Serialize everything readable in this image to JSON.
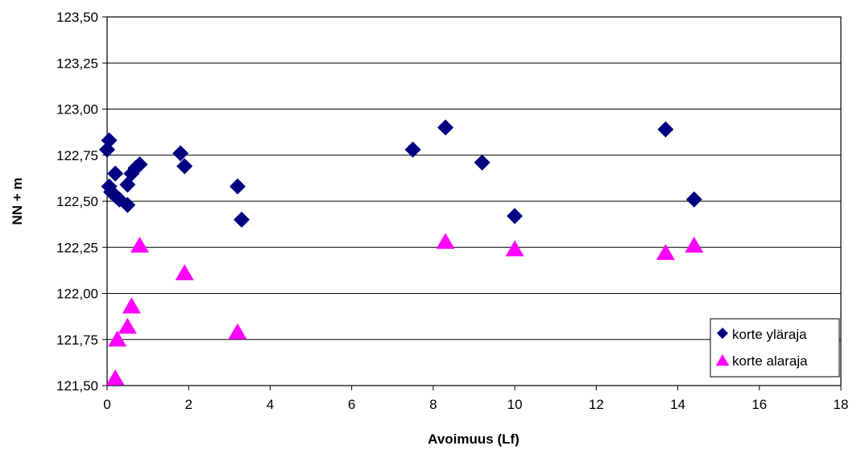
{
  "chart_data": {
    "type": "scatter",
    "title": "",
    "xlabel": "Avoimuus (Lf)",
    "ylabel": "NN + m",
    "xlim": [
      0,
      18
    ],
    "ylim": [
      121.5,
      123.5
    ],
    "x_ticks": [
      "0",
      "2",
      "4",
      "6",
      "8",
      "10",
      "12",
      "14",
      "16",
      "18"
    ],
    "y_ticks": [
      "121,50",
      "121,75",
      "122,00",
      "122,25",
      "122,50",
      "122,75",
      "123,00",
      "123,25",
      "123,50"
    ],
    "grid": "horizontal",
    "legend_position": "bottom-right",
    "series": [
      {
        "name": "korte yläraja",
        "marker": "diamond",
        "color": "#000080",
        "points": [
          [
            0.0,
            122.78
          ],
          [
            0.05,
            122.83
          ],
          [
            0.05,
            122.58
          ],
          [
            0.1,
            122.55
          ],
          [
            0.2,
            122.65
          ],
          [
            0.2,
            122.53
          ],
          [
            0.3,
            122.51
          ],
          [
            0.5,
            122.48
          ],
          [
            0.5,
            122.59
          ],
          [
            0.6,
            122.65
          ],
          [
            0.7,
            122.68
          ],
          [
            0.8,
            122.7
          ],
          [
            1.8,
            122.76
          ],
          [
            1.9,
            122.69
          ],
          [
            3.2,
            122.58
          ],
          [
            3.3,
            122.4
          ],
          [
            7.5,
            122.78
          ],
          [
            8.3,
            122.9
          ],
          [
            9.2,
            122.71
          ],
          [
            10.0,
            122.42
          ],
          [
            13.7,
            122.89
          ],
          [
            14.4,
            122.51
          ]
        ]
      },
      {
        "name": "korte alaraja",
        "marker": "triangle",
        "color": "#ff00ff",
        "points": [
          [
            0.2,
            121.54
          ],
          [
            0.25,
            121.75
          ],
          [
            0.5,
            121.82
          ],
          [
            0.6,
            121.93
          ],
          [
            0.8,
            122.26
          ],
          [
            1.9,
            122.11
          ],
          [
            3.2,
            121.79
          ],
          [
            8.3,
            122.28
          ],
          [
            10.0,
            122.24
          ],
          [
            13.7,
            122.22
          ],
          [
            14.4,
            122.26
          ]
        ]
      }
    ]
  }
}
